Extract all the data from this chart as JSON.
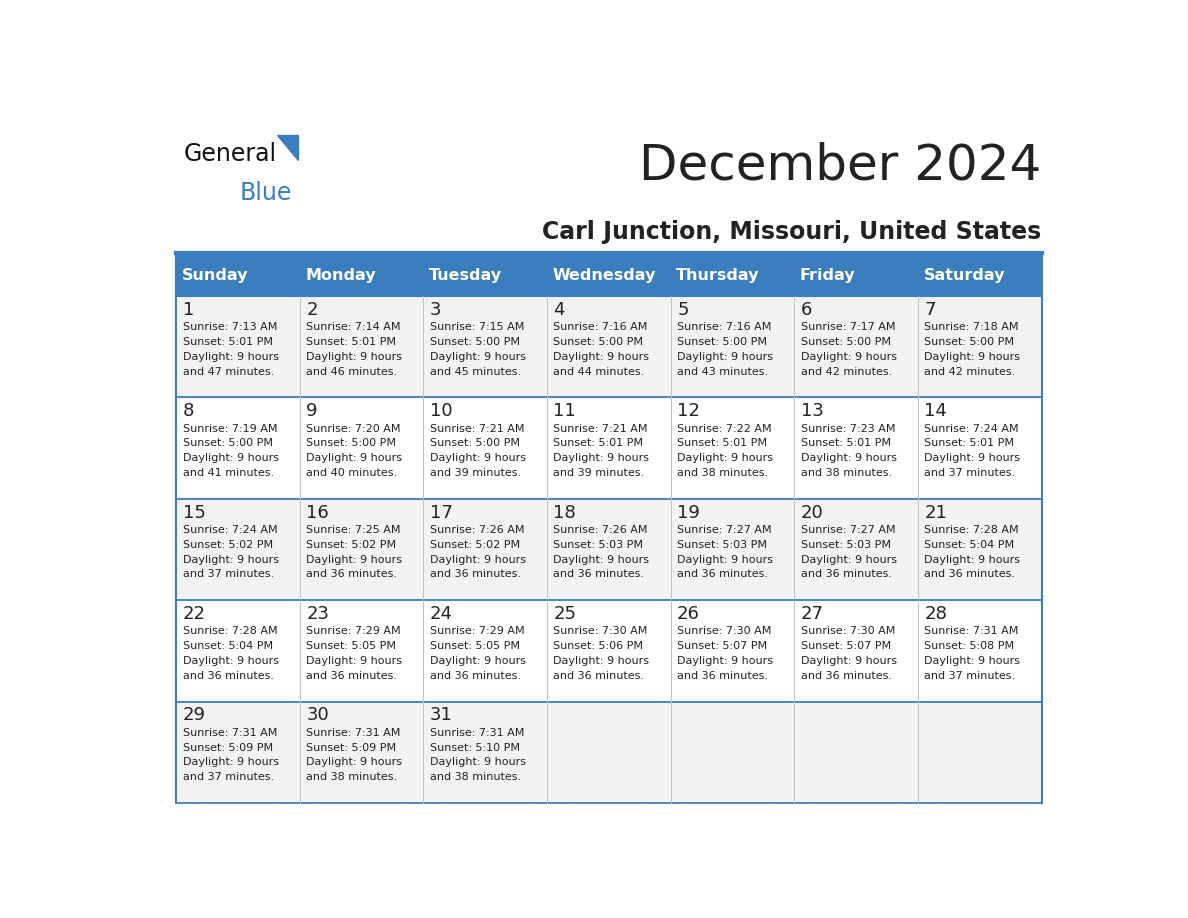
{
  "title": "December 2024",
  "subtitle": "Carl Junction, Missouri, United States",
  "days_of_week": [
    "Sunday",
    "Monday",
    "Tuesday",
    "Wednesday",
    "Thursday",
    "Friday",
    "Saturday"
  ],
  "header_bg": "#3a7ebf",
  "header_text": "#ffffff",
  "row_bg_odd": "#f2f2f2",
  "row_bg_even": "#ffffff",
  "cell_text_color": "#222222",
  "day_num_color": "#222222",
  "border_color": "#3a7ebf",
  "sep_color": "#b0c4d8",
  "title_color": "#222222",
  "subtitle_color": "#222222",
  "logo_text_color": "#111111",
  "logo_blue_color": "#3a7ebf",
  "calendar_data": [
    [
      {
        "day": 1,
        "sunrise": "7:13 AM",
        "sunset": "5:01 PM",
        "daylight": "9 hours and 47 minutes."
      },
      {
        "day": 2,
        "sunrise": "7:14 AM",
        "sunset": "5:01 PM",
        "daylight": "9 hours and 46 minutes."
      },
      {
        "day": 3,
        "sunrise": "7:15 AM",
        "sunset": "5:00 PM",
        "daylight": "9 hours and 45 minutes."
      },
      {
        "day": 4,
        "sunrise": "7:16 AM",
        "sunset": "5:00 PM",
        "daylight": "9 hours and 44 minutes."
      },
      {
        "day": 5,
        "sunrise": "7:16 AM",
        "sunset": "5:00 PM",
        "daylight": "9 hours and 43 minutes."
      },
      {
        "day": 6,
        "sunrise": "7:17 AM",
        "sunset": "5:00 PM",
        "daylight": "9 hours and 42 minutes."
      },
      {
        "day": 7,
        "sunrise": "7:18 AM",
        "sunset": "5:00 PM",
        "daylight": "9 hours and 42 minutes."
      }
    ],
    [
      {
        "day": 8,
        "sunrise": "7:19 AM",
        "sunset": "5:00 PM",
        "daylight": "9 hours and 41 minutes."
      },
      {
        "day": 9,
        "sunrise": "7:20 AM",
        "sunset": "5:00 PM",
        "daylight": "9 hours and 40 minutes."
      },
      {
        "day": 10,
        "sunrise": "7:21 AM",
        "sunset": "5:00 PM",
        "daylight": "9 hours and 39 minutes."
      },
      {
        "day": 11,
        "sunrise": "7:21 AM",
        "sunset": "5:01 PM",
        "daylight": "9 hours and 39 minutes."
      },
      {
        "day": 12,
        "sunrise": "7:22 AM",
        "sunset": "5:01 PM",
        "daylight": "9 hours and 38 minutes."
      },
      {
        "day": 13,
        "sunrise": "7:23 AM",
        "sunset": "5:01 PM",
        "daylight": "9 hours and 38 minutes."
      },
      {
        "day": 14,
        "sunrise": "7:24 AM",
        "sunset": "5:01 PM",
        "daylight": "9 hours and 37 minutes."
      }
    ],
    [
      {
        "day": 15,
        "sunrise": "7:24 AM",
        "sunset": "5:02 PM",
        "daylight": "9 hours and 37 minutes."
      },
      {
        "day": 16,
        "sunrise": "7:25 AM",
        "sunset": "5:02 PM",
        "daylight": "9 hours and 36 minutes."
      },
      {
        "day": 17,
        "sunrise": "7:26 AM",
        "sunset": "5:02 PM",
        "daylight": "9 hours and 36 minutes."
      },
      {
        "day": 18,
        "sunrise": "7:26 AM",
        "sunset": "5:03 PM",
        "daylight": "9 hours and 36 minutes."
      },
      {
        "day": 19,
        "sunrise": "7:27 AM",
        "sunset": "5:03 PM",
        "daylight": "9 hours and 36 minutes."
      },
      {
        "day": 20,
        "sunrise": "7:27 AM",
        "sunset": "5:03 PM",
        "daylight": "9 hours and 36 minutes."
      },
      {
        "day": 21,
        "sunrise": "7:28 AM",
        "sunset": "5:04 PM",
        "daylight": "9 hours and 36 minutes."
      }
    ],
    [
      {
        "day": 22,
        "sunrise": "7:28 AM",
        "sunset": "5:04 PM",
        "daylight": "9 hours and 36 minutes."
      },
      {
        "day": 23,
        "sunrise": "7:29 AM",
        "sunset": "5:05 PM",
        "daylight": "9 hours and 36 minutes."
      },
      {
        "day": 24,
        "sunrise": "7:29 AM",
        "sunset": "5:05 PM",
        "daylight": "9 hours and 36 minutes."
      },
      {
        "day": 25,
        "sunrise": "7:30 AM",
        "sunset": "5:06 PM",
        "daylight": "9 hours and 36 minutes."
      },
      {
        "day": 26,
        "sunrise": "7:30 AM",
        "sunset": "5:07 PM",
        "daylight": "9 hours and 36 minutes."
      },
      {
        "day": 27,
        "sunrise": "7:30 AM",
        "sunset": "5:07 PM",
        "daylight": "9 hours and 36 minutes."
      },
      {
        "day": 28,
        "sunrise": "7:31 AM",
        "sunset": "5:08 PM",
        "daylight": "9 hours and 37 minutes."
      }
    ],
    [
      {
        "day": 29,
        "sunrise": "7:31 AM",
        "sunset": "5:09 PM",
        "daylight": "9 hours and 37 minutes."
      },
      {
        "day": 30,
        "sunrise": "7:31 AM",
        "sunset": "5:09 PM",
        "daylight": "9 hours and 38 minutes."
      },
      {
        "day": 31,
        "sunrise": "7:31 AM",
        "sunset": "5:10 PM",
        "daylight": "9 hours and 38 minutes."
      },
      null,
      null,
      null,
      null
    ]
  ]
}
